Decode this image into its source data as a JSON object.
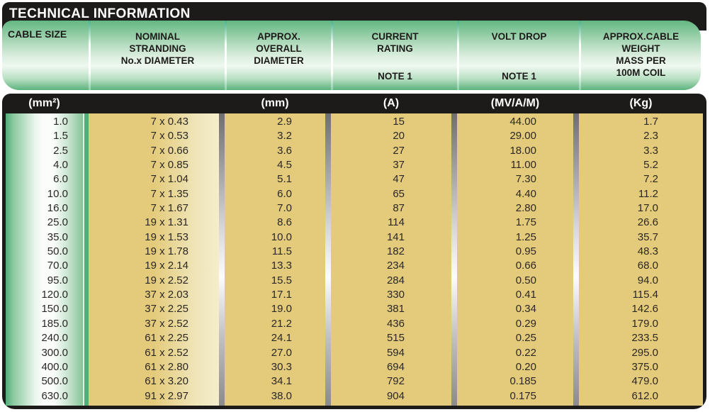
{
  "title": "TECHNICAL INFORMATION",
  "colors": {
    "frame_black": "#1d1b19",
    "band_green_dark": "#4fae79",
    "band_green_light": "#eff8f0",
    "cell_gold": "#e4cb7b",
    "cell_cream": "#f4edcb",
    "unit_text": "#ffffff",
    "data_text": "#2b2724"
  },
  "table": {
    "columns": [
      {
        "header": [
          "CABLE SIZE"
        ],
        "note": "",
        "unit": "(mm²)"
      },
      {
        "header": [
          "NOMINAL",
          "STRANDING",
          "No.x DIAMETER"
        ],
        "note": "",
        "unit": ""
      },
      {
        "header": [
          "APPROX.",
          "OVERALL",
          "DIAMETER"
        ],
        "note": "",
        "unit": "(mm)"
      },
      {
        "header": [
          "CURRENT",
          "RATING"
        ],
        "note": "NOTE 1",
        "unit": "(A)"
      },
      {
        "header": [
          "VOLT DROP"
        ],
        "note": "NOTE 1",
        "unit": "(MV/A/M)"
      },
      {
        "header": [
          "APPROX.CABLE",
          "WEIGHT",
          "MASS PER",
          "100M COIL"
        ],
        "note": "",
        "unit": "(Kg)"
      }
    ],
    "rows": [
      [
        "1.0",
        "7 x 0.43",
        "2.9",
        "15",
        "44.00",
        "1.7"
      ],
      [
        "1.5",
        "7 x 0.53",
        "3.2",
        "20",
        "29.00",
        "2.3"
      ],
      [
        "2.5",
        "7 x 0.66",
        "3.6",
        "27",
        "18.00",
        "3.3"
      ],
      [
        "4.0",
        "7 x 0.85",
        "4.5",
        "37",
        "11.00",
        "5.2"
      ],
      [
        "6.0",
        "7 x 1.04",
        "5.1",
        "47",
        "7.30",
        "7.2"
      ],
      [
        "10.0",
        "7 x 1.35",
        "6.0",
        "65",
        "4.40",
        "11.2"
      ],
      [
        "16.0",
        "7 x 1.67",
        "7.0",
        "87",
        "2.80",
        "17.0"
      ],
      [
        "25.0",
        "19 x 1.31",
        "8.6",
        "114",
        "1.75",
        "26.6"
      ],
      [
        "35.0",
        "19 x 1.53",
        "10.0",
        "141",
        "1.25",
        "35.7"
      ],
      [
        "50.0",
        "19 x 1.78",
        "11.5",
        "182",
        "0.95",
        "48.3"
      ],
      [
        "70.0",
        "19 x 2.14",
        "13.3",
        "234",
        "0.66",
        "68.0"
      ],
      [
        "95.0",
        "19 x 2.52",
        "15.5",
        "284",
        "0.50",
        "94.0"
      ],
      [
        "120.0",
        "37 x 2.03",
        "17.1",
        "330",
        "0.41",
        "115.4"
      ],
      [
        "150.0",
        "37 x 2.25",
        "19.0",
        "381",
        "0.34",
        "142.6"
      ],
      [
        "185.0",
        "37 x 2.52",
        "21.2",
        "436",
        "0.29",
        "179.0"
      ],
      [
        "240.0",
        "61 x 2.25",
        "24.1",
        "515",
        "0.25",
        "233.5"
      ],
      [
        "300.0",
        "61 x 2.52",
        "27.0",
        "594",
        "0.22",
        "295.0"
      ],
      [
        "400.0",
        "61 x 2.80",
        "30.3",
        "694",
        "0.20",
        "375.0"
      ],
      [
        "500.0",
        "61 x 3.20",
        "34.1",
        "792",
        "0.185",
        "479.0"
      ],
      [
        "630.0",
        "91 x 2.97",
        "38.0",
        "904",
        "0.175",
        "612.0"
      ]
    ]
  }
}
